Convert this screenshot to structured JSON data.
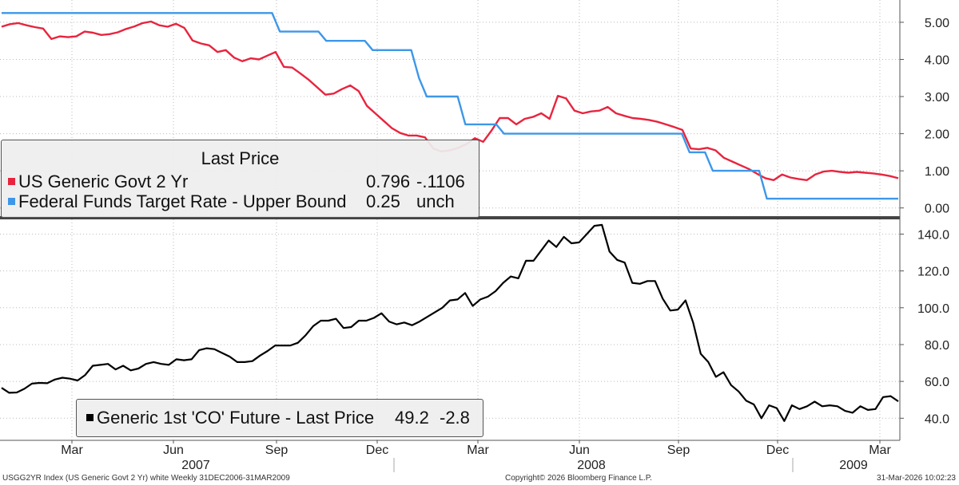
{
  "footer": {
    "left": "USGG2YR Index (US Generic Govt 2 Yr) white Weekly 31DEC2006-31MAR2009",
    "center": "Copyright© 2026 Bloomberg Finance L.P.",
    "right": "31-Mar-2026 10:02:23"
  },
  "chart_data": [
    {
      "type": "line",
      "legend_title": "Last Price",
      "legend_position": "bottom-left",
      "grid": true,
      "ylim": [
        -0.2,
        5.6
      ],
      "yticks": [
        0,
        1,
        2,
        3,
        4,
        5
      ],
      "ytick_labels": [
        "0.00",
        "1.00",
        "2.00",
        "3.00",
        "4.00",
        "5.00"
      ],
      "series": [
        {
          "name": "US Generic Govt 2 Yr",
          "color": "#e8243e",
          "last": "0.796",
          "change": "-.1106",
          "values": [
            4.88,
            4.95,
            4.98,
            4.92,
            4.87,
            4.83,
            4.55,
            4.62,
            4.6,
            4.62,
            4.75,
            4.72,
            4.66,
            4.68,
            4.73,
            4.82,
            4.89,
            4.98,
            5.02,
            4.92,
            4.88,
            4.96,
            4.85,
            4.51,
            4.43,
            4.38,
            4.2,
            4.25,
            4.05,
            3.95,
            4.03,
            4.0,
            4.1,
            4.2,
            3.8,
            3.78,
            3.62,
            3.45,
            3.25,
            3.05,
            3.08,
            3.2,
            3.3,
            3.15,
            2.75,
            2.55,
            2.35,
            2.15,
            2.02,
            1.95,
            1.95,
            1.9,
            1.6,
            1.52,
            1.55,
            1.62,
            1.72,
            1.88,
            1.78,
            2.08,
            2.42,
            2.42,
            2.25,
            2.4,
            2.45,
            2.55,
            2.4,
            3.02,
            2.95,
            2.62,
            2.55,
            2.6,
            2.62,
            2.72,
            2.55,
            2.48,
            2.42,
            2.4,
            2.37,
            2.32,
            2.25,
            2.18,
            2.1,
            1.6,
            1.58,
            1.62,
            1.55,
            1.35,
            1.25,
            1.15,
            1.05,
            0.92,
            0.8,
            0.75,
            0.9,
            0.82,
            0.78,
            0.75,
            0.9,
            0.98,
            1.0,
            0.97,
            0.95,
            0.97,
            0.95,
            0.93,
            0.9,
            0.86,
            0.8
          ]
        },
        {
          "name": "Federal Funds Target Rate - Upper Bound",
          "color": "#3d97e8",
          "last": "0.25",
          "change": "unch",
          "values": [
            5.25,
            5.25,
            5.25,
            5.25,
            5.25,
            5.25,
            5.25,
            5.25,
            5.25,
            5.25,
            5.25,
            5.25,
            5.25,
            5.25,
            5.25,
            5.25,
            5.25,
            5.25,
            5.25,
            5.25,
            5.25,
            5.25,
            5.25,
            5.25,
            5.25,
            5.25,
            5.25,
            5.25,
            5.25,
            5.25,
            5.25,
            5.25,
            5.25,
            5.25,
            5.25,
            5.25,
            4.75,
            4.75,
            4.75,
            4.75,
            4.75,
            4.75,
            4.5,
            4.5,
            4.5,
            4.5,
            4.5,
            4.5,
            4.25,
            4.25,
            4.25,
            4.25,
            4.25,
            4.25,
            3.5,
            3.0,
            3.0,
            3.0,
            3.0,
            3.0,
            2.25,
            2.25,
            2.25,
            2.25,
            2.25,
            2.0,
            2.0,
            2.0,
            2.0,
            2.0,
            2.0,
            2.0,
            2.0,
            2.0,
            2.0,
            2.0,
            2.0,
            2.0,
            2.0,
            2.0,
            2.0,
            2.0,
            2.0,
            2.0,
            2.0,
            2.0,
            2.0,
            2.0,
            2.0,
            1.5,
            1.5,
            1.5,
            1.0,
            1.0,
            1.0,
            1.0,
            1.0,
            1.0,
            1.0,
            0.25,
            0.25,
            0.25,
            0.25,
            0.25,
            0.25,
            0.25,
            0.25,
            0.25,
            0.25,
            0.25,
            0.25,
            0.25,
            0.25,
            0.25,
            0.25,
            0.25,
            0.25
          ]
        }
      ]
    },
    {
      "type": "line",
      "legend_position": "bottom-left",
      "grid": true,
      "ylim": [
        28,
        148
      ],
      "yticks": [
        40,
        60,
        80,
        100,
        120,
        140
      ],
      "ytick_labels": [
        "40.0",
        "60.0",
        "80.0",
        "100.0",
        "120.0",
        "140.0"
      ],
      "series": [
        {
          "name": "Generic 1st 'CO' Future - Last Price",
          "color": "#000000",
          "last": "49.2",
          "change": "-2.8",
          "values": [
            56.5,
            53.8,
            54.0,
            56.0,
            58.8,
            59.2,
            59.0,
            61.0,
            62.0,
            61.5,
            60.5,
            63.5,
            68.5,
            69.0,
            69.5,
            66.5,
            68.5,
            66.0,
            67.0,
            69.5,
            70.5,
            69.5,
            69.0,
            72.0,
            71.5,
            72.0,
            77.0,
            78.0,
            77.5,
            75.5,
            73.5,
            70.5,
            70.5,
            71.0,
            74.0,
            76.5,
            79.5,
            79.5,
            79.5,
            81.0,
            85.0,
            90.0,
            93.0,
            93.0,
            94.0,
            89.0,
            89.5,
            93.0,
            93.0,
            94.5,
            97.0,
            92.5,
            91.0,
            92.0,
            90.5,
            92.5,
            95.0,
            97.5,
            100.0,
            104.0,
            104.5,
            108.0,
            101.0,
            104.5,
            106.0,
            109.0,
            113.5,
            117.0,
            116.0,
            125.5,
            125.5,
            131.0,
            136.5,
            133.0,
            138.5,
            135.0,
            135.5,
            140.0,
            144.5,
            145.0,
            130.5,
            126.0,
            124.5,
            113.5,
            113.0,
            114.5,
            114.5,
            105.0,
            98.5,
            99.0,
            104.0,
            92.0,
            75.0,
            70.5,
            62.5,
            65.0,
            58.0,
            54.5,
            49.5,
            47.5,
            40.0,
            47.0,
            45.5,
            38.5,
            47.0,
            45.0,
            46.5,
            49.0,
            46.5,
            47.0,
            46.5,
            44.0,
            43.0,
            46.5,
            44.5,
            45.0,
            51.5,
            52.0,
            49.2
          ]
        }
      ]
    }
  ],
  "x_axis": {
    "months": [
      "Mar",
      "Jun",
      "Sep",
      "Dec",
      "Mar",
      "Jun",
      "Sep",
      "Dec",
      "Mar"
    ],
    "years": [
      "2007",
      "2008",
      "2009"
    ]
  }
}
